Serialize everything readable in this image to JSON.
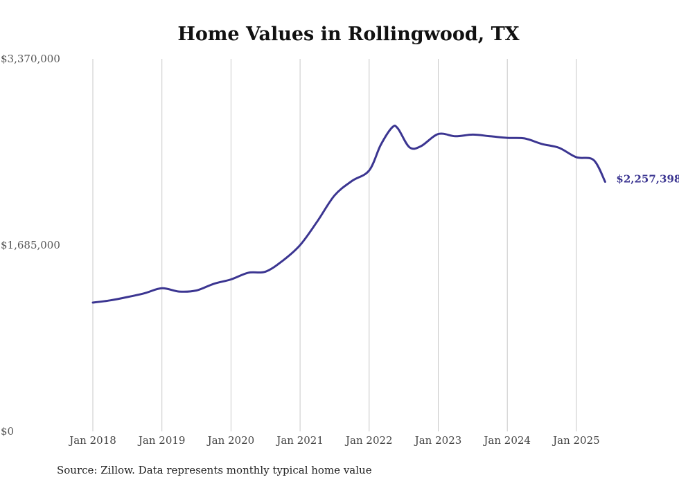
{
  "chart_data": {
    "type": "line",
    "title": "Home Values in Rollingwood, TX",
    "xlabel": "",
    "ylabel": "",
    "ylim": [
      0,
      3370000
    ],
    "yticks": [
      {
        "value": 0,
        "label": "$0"
      },
      {
        "value": 1685000,
        "label": "$1,685,000"
      },
      {
        "value": 3370000,
        "label": "$3,370,000"
      }
    ],
    "xticks": [
      "Jan 2018",
      "Jan 2019",
      "Jan 2020",
      "Jan 2021",
      "Jan 2022",
      "Jan 2023",
      "Jan 2024",
      "Jan 2025"
    ],
    "grid": "vertical",
    "line_color": "#3b3591",
    "end_label": "$2,257,398",
    "source": "Source: Zillow. Data represents monthly typical home value",
    "series": [
      {
        "x": [
          "2018-01",
          "2018-04",
          "2018-07",
          "2018-10",
          "2019-01",
          "2019-04",
          "2019-07",
          "2019-10",
          "2020-01",
          "2020-04",
          "2020-07",
          "2020-10",
          "2021-01",
          "2021-04",
          "2021-07",
          "2021-10",
          "2022-01",
          "2022-03",
          "2022-05",
          "2022-06",
          "2022-08",
          "2022-10",
          "2023-01",
          "2023-04",
          "2023-07",
          "2023-10",
          "2024-01",
          "2024-04",
          "2024-07",
          "2024-10",
          "2025-01",
          "2025-04",
          "2025-06"
        ],
        "y": [
          1165000,
          1185000,
          1215000,
          1250000,
          1295000,
          1265000,
          1275000,
          1335000,
          1375000,
          1435000,
          1445000,
          1545000,
          1685000,
          1900000,
          2135000,
          2265000,
          2360000,
          2590000,
          2750000,
          2740000,
          2570000,
          2580000,
          2690000,
          2670000,
          2685000,
          2670000,
          2655000,
          2650000,
          2600000,
          2565000,
          2480000,
          2455000,
          2257398
        ]
      }
    ]
  }
}
